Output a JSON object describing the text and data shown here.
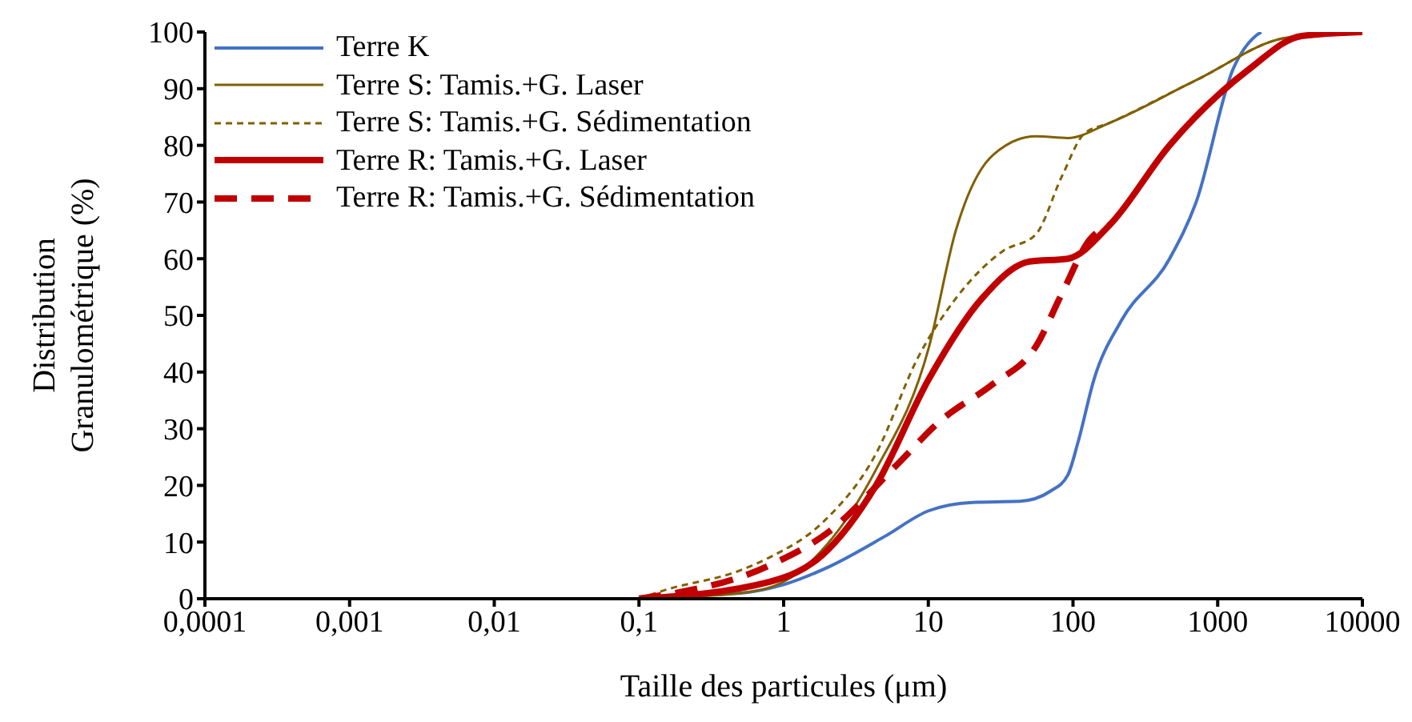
{
  "chart_data": {
    "type": "line",
    "xlabel": "Taille des particules (μm)",
    "ylabel": "Distribution Granulométrique (%)",
    "log": "x",
    "xlim": [
      0.0001,
      10000
    ],
    "xticks": [
      {
        "value": 0.0001,
        "label": "0,0001"
      },
      {
        "value": 0.001,
        "label": "0,001"
      },
      {
        "value": 0.01,
        "label": "0,01"
      },
      {
        "value": 0.1,
        "label": "0,1"
      },
      1,
      10,
      100,
      1000,
      10000
    ],
    "ylim": [
      0,
      100
    ],
    "yticks": [
      0,
      10,
      20,
      30,
      40,
      50,
      60,
      70,
      80,
      90,
      100
    ],
    "grid": false,
    "legend": "top left",
    "marker": "none",
    "series": [
      {
        "name": "Terre K",
        "color": "#4472c4",
        "line_style": "solid",
        "x": [
          0.1,
          0.5,
          1,
          2,
          5,
          10,
          20,
          43,
          70,
          92,
          108,
          140,
          215,
          465,
          710,
          1280,
          1870,
          2000
        ],
        "values": [
          0.3,
          1,
          2.5,
          5.5,
          11,
          15.5,
          17,
          17.2,
          19,
          21.8,
          27.5,
          38.8,
          49,
          60,
          70,
          93.5,
          99.5,
          100
        ]
      },
      {
        "name": "Terre S: Tamis.+G. Laser",
        "color": "#806000",
        "line_style": "solid",
        "x": [
          0.1,
          0.5,
          1,
          2,
          4.35,
          10.1,
          15.5,
          28,
          55,
          92,
          180,
          710,
          3000,
          10000
        ],
        "values": [
          0,
          1,
          3,
          9.6,
          22.8,
          44.4,
          65,
          78.3,
          81.6,
          81.3,
          84,
          91.5,
          99,
          100
        ]
      },
      {
        "name": "Terre S: Tamis.+G. Sédimentation",
        "color": "#806000",
        "line_style": "dashed",
        "x": [
          0.1,
          0.15,
          0.5,
          0.8,
          1.85,
          4.35,
          8.5,
          15.5,
          33,
          55,
          84,
          119,
          180,
          710,
          3000,
          10000
        ],
        "values": [
          0,
          1.5,
          5,
          7.3,
          13.4,
          25.6,
          42.6,
          53,
          61.4,
          64.2,
          74.6,
          82,
          84,
          91.5,
          99,
          100
        ]
      },
      {
        "name": "Terre R: Tamis.+G. Laser",
        "color": "#c00000",
        "line_style": "solid",
        "x": [
          0.1,
          0.8,
          1.85,
          4.35,
          10.1,
          23.5,
          50,
          92,
          180,
          465,
          1660,
          3800,
          10000
        ],
        "values": [
          0,
          3,
          7.7,
          20,
          38.8,
          53,
          59.5,
          60,
          66,
          80,
          93.5,
          99.3,
          100
        ]
      },
      {
        "name": "Terre R: Tamis.+G. Sédimentation",
        "color": "#c00000",
        "line_style": "dashed",
        "x": [
          0.1,
          0.8,
          2,
          6.1,
          12,
          28,
          55,
          84,
          130,
          180
        ],
        "values": [
          0,
          5.9,
          11.6,
          23.7,
          31.3,
          37.9,
          44.4,
          53.9,
          63.3,
          66
        ]
      }
    ]
  }
}
